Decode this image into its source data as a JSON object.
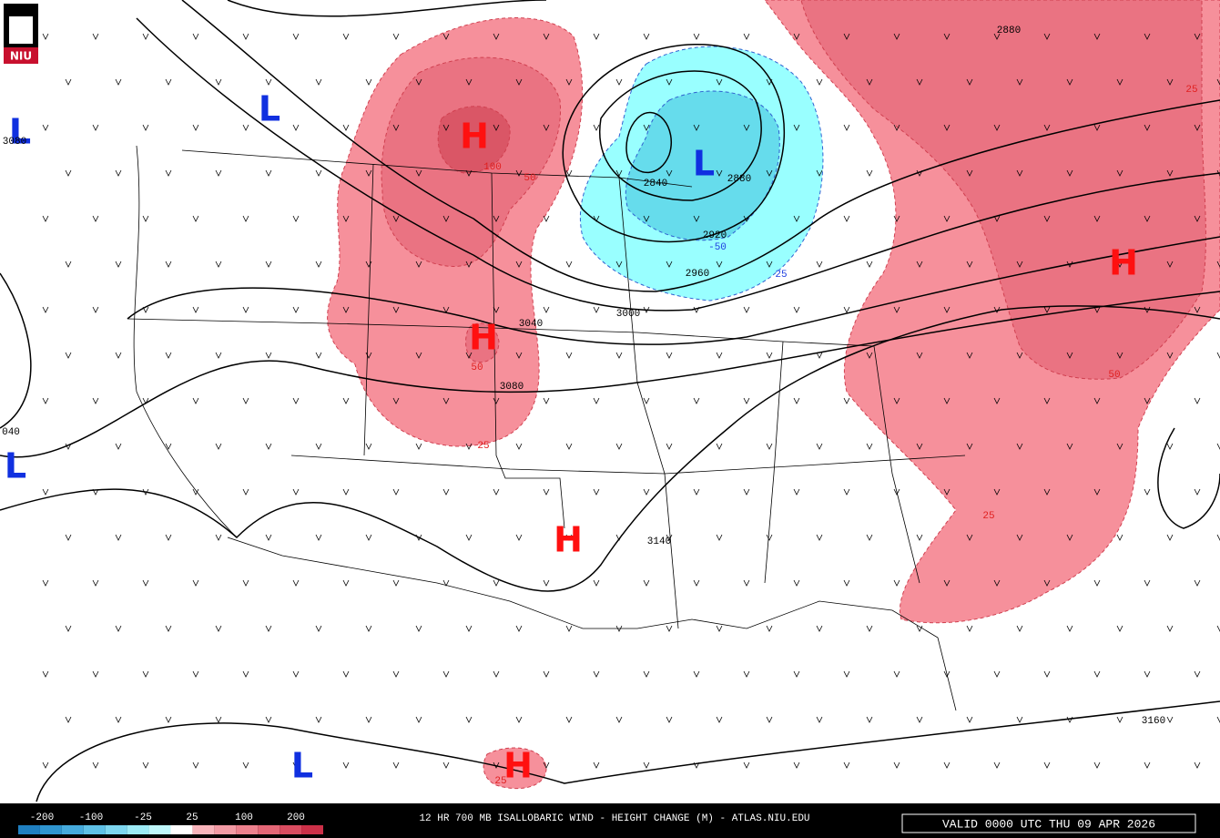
{
  "logo": "NIU",
  "highs": [
    "H",
    "H",
    "H",
    "H",
    "H"
  ],
  "lows": [
    "L",
    "L",
    "L",
    "L",
    "L"
  ],
  "height_labels": [
    "3080",
    "2880",
    "2840",
    "2880",
    "2920",
    "2960",
    "3000",
    "3040",
    "3080",
    "3140",
    "3160",
    "040"
  ],
  "change_labels": [
    "100",
    "50",
    "50",
    "25",
    "-50",
    "25",
    "25",
    "50",
    "25",
    "25"
  ],
  "colorbar_labels": [
    "-200",
    "-100",
    "-25",
    "25",
    "100",
    "200"
  ],
  "footer": {
    "title": "12 HR 700 MB ISALLOBARIC WIND - HEIGHT CHANGE (M) - ATLAS.NIU.EDU",
    "valid": "VALID 0000 UTC THU 09 APR 2026"
  }
}
